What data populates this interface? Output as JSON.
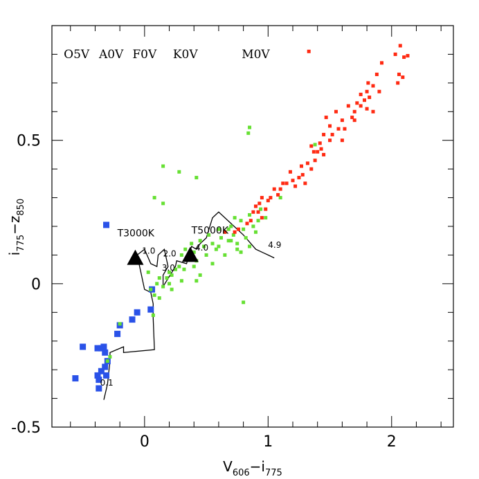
{
  "chart_data": {
    "type": "scatter",
    "title": "",
    "xlabel": {
      "main": "V",
      "sub1": "606",
      "mid": "−i",
      "sub2": "775"
    },
    "ylabel": {
      "main": "i",
      "sub1": "775",
      "mid": "−z",
      "sub2": "850"
    },
    "xlim": [
      -0.75,
      2.5
    ],
    "ylim": [
      -0.5,
      0.9
    ],
    "xticks": [
      {
        "value": 0,
        "label": "0"
      },
      {
        "value": 1,
        "label": "1"
      },
      {
        "value": 2,
        "label": "2"
      }
    ],
    "yticks": [
      {
        "value": -0.5,
        "label": "-0.5"
      },
      {
        "value": 0,
        "label": "0"
      },
      {
        "value": 0.5,
        "label": "0.5"
      }
    ],
    "x_minor_step": 0.2,
    "y_minor_step": 0.1,
    "spectral_types": [
      {
        "label": "O5V",
        "x": -0.55
      },
      {
        "label": "A0V",
        "x": -0.27
      },
      {
        "label": "F0V",
        "x": 0.0
      },
      {
        "label": "K0V",
        "x": 0.33
      },
      {
        "label": "M0V",
        "x": 0.9
      }
    ],
    "temperature_labels": [
      {
        "label": "T3000K",
        "x": -0.22,
        "y": 0.165
      },
      {
        "label": "T5000K",
        "x": 0.38,
        "y": 0.175
      }
    ],
    "redshift_labels": [
      {
        "label": "1.0",
        "x": -0.02,
        "y": 0.105
      },
      {
        "label": "2.0",
        "x": 0.15,
        "y": 0.095
      },
      {
        "label": "3.0",
        "x": 0.14,
        "y": 0.045
      },
      {
        "label": "4.0",
        "x": 0.41,
        "y": 0.115
      },
      {
        "label": "4.9",
        "x": 1.0,
        "y": 0.125
      },
      {
        "label": "0.1",
        "x": -0.36,
        "y": -0.355
      }
    ],
    "triangles": [
      {
        "x": -0.075,
        "y": 0.09
      },
      {
        "x": 0.37,
        "y": 0.1
      }
    ],
    "track": [
      [
        -0.33,
        -0.405
      ],
      [
        -0.3,
        -0.35
      ],
      [
        -0.28,
        -0.27
      ],
      [
        -0.28,
        -0.24
      ],
      [
        -0.17,
        -0.22
      ],
      [
        -0.17,
        -0.24
      ],
      [
        0.08,
        -0.23
      ],
      [
        0.07,
        -0.12
      ],
      [
        0.07,
        -0.07
      ],
      [
        0.05,
        -0.03
      ],
      [
        0.0,
        -0.02
      ],
      [
        -0.03,
        0.04
      ],
      [
        -0.06,
        0.1
      ],
      [
        0.0,
        0.12
      ],
      [
        0.05,
        0.07
      ],
      [
        0.1,
        0.06
      ],
      [
        0.11,
        0.1
      ],
      [
        0.16,
        0.12
      ],
      [
        0.19,
        0.06
      ],
      [
        0.15,
        0.03
      ],
      [
        0.15,
        -0.01
      ],
      [
        0.25,
        0.06
      ],
      [
        0.26,
        0.08
      ],
      [
        0.34,
        0.07
      ],
      [
        0.36,
        0.1
      ],
      [
        0.38,
        0.13
      ],
      [
        0.42,
        0.12
      ],
      [
        0.45,
        0.14
      ],
      [
        0.5,
        0.16
      ],
      [
        0.55,
        0.23
      ],
      [
        0.6,
        0.25
      ],
      [
        0.7,
        0.21
      ],
      [
        0.8,
        0.17
      ],
      [
        0.9,
        0.12
      ],
      [
        1.0,
        0.1
      ],
      [
        1.05,
        0.09
      ]
    ],
    "series": [
      {
        "name": "blue",
        "color": "#2a52e8",
        "marker": "square-large",
        "points": [
          [
            -0.31,
            0.205
          ],
          [
            0.06,
            -0.02
          ],
          [
            -0.06,
            -0.1
          ],
          [
            0.05,
            -0.09
          ],
          [
            -0.1,
            -0.125
          ],
          [
            -0.2,
            -0.145
          ],
          [
            -0.22,
            -0.175
          ],
          [
            -0.5,
            -0.22
          ],
          [
            -0.38,
            -0.225
          ],
          [
            -0.33,
            -0.22
          ],
          [
            -0.32,
            -0.24
          ],
          [
            -0.35,
            -0.225
          ],
          [
            -0.3,
            -0.27
          ],
          [
            -0.38,
            -0.32
          ],
          [
            -0.35,
            -0.305
          ],
          [
            -0.32,
            -0.29
          ],
          [
            -0.31,
            -0.32
          ],
          [
            -0.56,
            -0.33
          ],
          [
            -0.37,
            -0.335
          ],
          [
            -0.37,
            -0.365
          ]
        ]
      },
      {
        "name": "green",
        "color": "#66e033",
        "marker": "square-small",
        "points": [
          [
            0.15,
            0.41
          ],
          [
            0.28,
            0.39
          ],
          [
            0.42,
            0.37
          ],
          [
            0.08,
            0.3
          ],
          [
            0.15,
            0.28
          ],
          [
            0.85,
            0.545
          ],
          [
            0.84,
            0.525
          ],
          [
            1.38,
            0.485
          ],
          [
            0.94,
            0.26
          ],
          [
            1.1,
            0.3
          ],
          [
            0.92,
            0.22
          ],
          [
            0.98,
            0.23
          ],
          [
            0.8,
            -0.065
          ],
          [
            -0.2,
            -0.14
          ],
          [
            -0.28,
            -0.255
          ],
          [
            -0.3,
            -0.27
          ],
          [
            0.07,
            -0.11
          ],
          [
            0.05,
            -0.02
          ],
          [
            0.03,
            0.04
          ],
          [
            0.1,
            0.0
          ],
          [
            0.08,
            -0.04
          ],
          [
            0.12,
            0.02
          ],
          [
            0.15,
            -0.01
          ],
          [
            0.18,
            0.02
          ],
          [
            0.2,
            0.04
          ],
          [
            0.22,
            0.03
          ],
          [
            0.25,
            0.05
          ],
          [
            0.28,
            0.06
          ],
          [
            0.3,
            0.1
          ],
          [
            0.33,
            0.12
          ],
          [
            0.35,
            0.09
          ],
          [
            0.38,
            0.14
          ],
          [
            0.4,
            0.11
          ],
          [
            0.42,
            0.08
          ],
          [
            0.45,
            0.15
          ],
          [
            0.48,
            0.13
          ],
          [
            0.5,
            0.1
          ],
          [
            0.52,
            0.17
          ],
          [
            0.55,
            0.14
          ],
          [
            0.58,
            0.12
          ],
          [
            0.6,
            0.19
          ],
          [
            0.62,
            0.16
          ],
          [
            0.65,
            0.18
          ],
          [
            0.68,
            0.15
          ],
          [
            0.7,
            0.2
          ],
          [
            0.72,
            0.17
          ],
          [
            0.75,
            0.14
          ],
          [
            0.78,
            0.22
          ],
          [
            0.8,
            0.19
          ],
          [
            0.82,
            0.16
          ],
          [
            0.85,
            0.24
          ],
          [
            0.88,
            0.2
          ],
          [
            0.9,
            0.18
          ],
          [
            0.75,
            0.12
          ],
          [
            0.65,
            0.1
          ],
          [
            0.55,
            0.07
          ],
          [
            0.45,
            0.03
          ],
          [
            0.3,
            0.01
          ],
          [
            0.22,
            -0.02
          ],
          [
            0.12,
            -0.05
          ],
          [
            0.2,
            0.0
          ],
          [
            0.32,
            0.05
          ],
          [
            0.4,
            0.06
          ],
          [
            0.6,
            0.13
          ],
          [
            0.7,
            0.15
          ],
          [
            0.78,
            0.11
          ],
          [
            0.85,
            0.13
          ],
          [
            0.73,
            0.23
          ],
          [
            0.68,
            0.19
          ],
          [
            0.42,
            0.01
          ]
        ]
      },
      {
        "name": "red",
        "color": "#ff2a12",
        "marker": "square-small",
        "points": [
          [
            1.33,
            0.81
          ],
          [
            2.07,
            0.83
          ],
          [
            2.03,
            0.8
          ],
          [
            2.1,
            0.79
          ],
          [
            2.13,
            0.795
          ],
          [
            1.92,
            0.77
          ],
          [
            1.88,
            0.73
          ],
          [
            2.06,
            0.73
          ],
          [
            2.09,
            0.72
          ],
          [
            2.05,
            0.7
          ],
          [
            1.81,
            0.7
          ],
          [
            1.85,
            0.69
          ],
          [
            1.8,
            0.67
          ],
          [
            1.75,
            0.66
          ],
          [
            1.82,
            0.65
          ],
          [
            1.9,
            0.67
          ],
          [
            1.78,
            0.64
          ],
          [
            1.72,
            0.63
          ],
          [
            1.75,
            0.62
          ],
          [
            1.8,
            0.61
          ],
          [
            1.65,
            0.62
          ],
          [
            1.7,
            0.6
          ],
          [
            1.85,
            0.6
          ],
          [
            1.68,
            0.58
          ],
          [
            1.6,
            0.57
          ],
          [
            1.55,
            0.6
          ],
          [
            1.47,
            0.58
          ],
          [
            1.5,
            0.55
          ],
          [
            1.57,
            0.54
          ],
          [
            1.45,
            0.52
          ],
          [
            1.6,
            0.5
          ],
          [
            1.5,
            0.5
          ],
          [
            1.42,
            0.49
          ],
          [
            1.35,
            0.48
          ],
          [
            1.4,
            0.46
          ],
          [
            1.45,
            0.45
          ],
          [
            1.38,
            0.43
          ],
          [
            1.32,
            0.42
          ],
          [
            1.35,
            0.4
          ],
          [
            1.28,
            0.38
          ],
          [
            1.25,
            0.37
          ],
          [
            1.2,
            0.36
          ],
          [
            1.3,
            0.35
          ],
          [
            1.22,
            0.34
          ],
          [
            1.15,
            0.35
          ],
          [
            1.1,
            0.33
          ],
          [
            1.05,
            0.33
          ],
          [
            1.08,
            0.31
          ],
          [
            1.02,
            0.3
          ],
          [
            1.0,
            0.29
          ],
          [
            0.95,
            0.3
          ],
          [
            0.93,
            0.28
          ],
          [
            0.9,
            0.27
          ],
          [
            0.98,
            0.26
          ],
          [
            0.92,
            0.25
          ],
          [
            0.88,
            0.25
          ],
          [
            0.95,
            0.23
          ],
          [
            0.86,
            0.22
          ],
          [
            0.83,
            0.21
          ],
          [
            0.76,
            0.19
          ],
          [
            0.73,
            0.18
          ],
          [
            0.65,
            0.18
          ],
          [
            1.12,
            0.35
          ],
          [
            1.18,
            0.39
          ],
          [
            1.27,
            0.41
          ],
          [
            1.37,
            0.46
          ],
          [
            1.43,
            0.47
          ],
          [
            1.52,
            0.52
          ],
          [
            1.62,
            0.54
          ],
          [
            1.7,
            0.57
          ]
        ]
      }
    ]
  }
}
